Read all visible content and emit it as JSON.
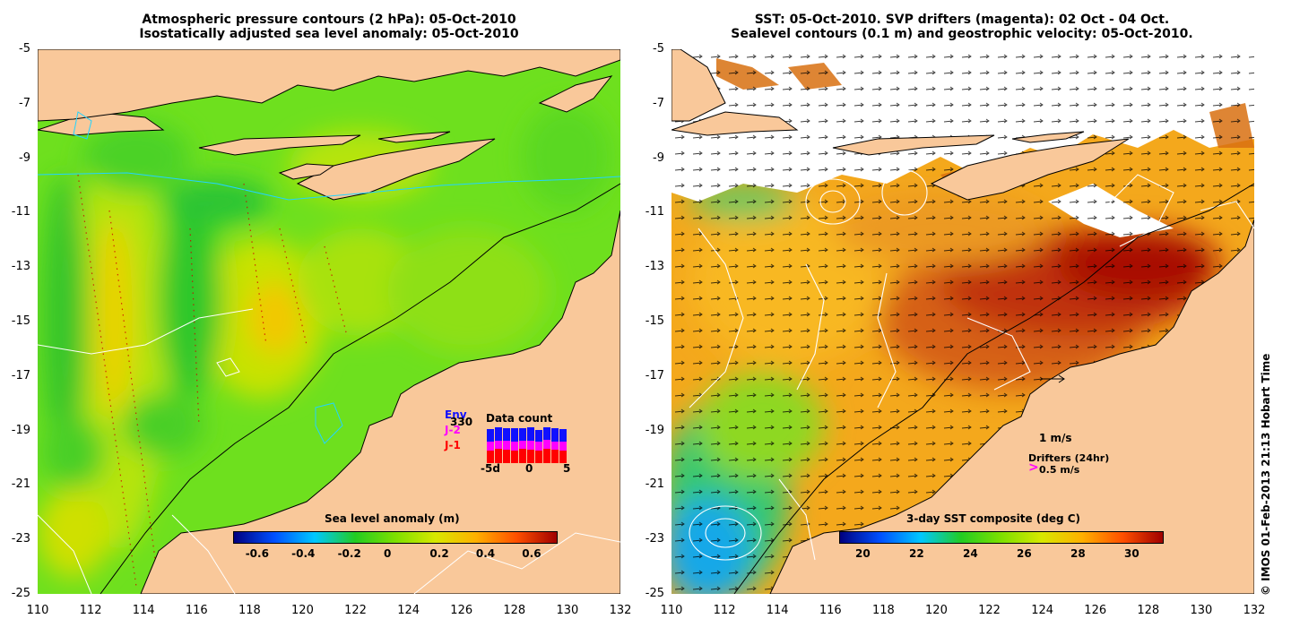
{
  "left": {
    "title_line1": "Atmospheric pressure contours (2 hPa): 05-Oct-2010",
    "title_line2": "Isostatically adjusted sea level anomaly: 05-Oct-2010",
    "colorbar_title": "Sea level anomaly (m)",
    "colorbar_ticks": [
      "-0.6",
      "-0.4",
      "-0.2",
      "0",
      "0.2",
      "0.4",
      "0.6"
    ],
    "colorbar_colors": [
      "#00007f",
      "#0050ff",
      "#00c8ff",
      "#22cc22",
      "#7ee000",
      "#d8e800",
      "#ffb000",
      "#ff5000",
      "#a00000"
    ],
    "inset": {
      "title": "Data count",
      "legend_env": "Env",
      "legend_env_count": "330",
      "legend_j2": "J-2",
      "legend_j1": "J-1",
      "xticks": [
        "-5d",
        "0",
        "5"
      ],
      "colors": {
        "env": "#1010ff",
        "j2": "#ff00ff",
        "j1": "#ff0000"
      }
    }
  },
  "right": {
    "title_line1": "SST: 05-Oct-2010. SVP drifters (magenta): 02 Oct - 04 Oct.",
    "title_line2": "Sealevel contours (0.1 m) and geostrophic velocity: 05-Oct-2010.",
    "colorbar_title": "3-day SST composite (deg C)",
    "colorbar_ticks": [
      "20",
      "22",
      "24",
      "26",
      "28",
      "30"
    ],
    "colorbar_colors": [
      "#00007f",
      "#0050ff",
      "#00c8ff",
      "#22cc22",
      "#7ee000",
      "#d8e800",
      "#ffb000",
      "#ff5000",
      "#a00000"
    ],
    "scale_label": "1 m/s",
    "drifters_label": "Drifters (24hr)",
    "drifter_speed_label": "0.5 m/s",
    "drifter_color": "#ff00ff"
  },
  "axes": {
    "lat_ticks": [
      "-5",
      "-7",
      "-9",
      "-11",
      "-13",
      "-15",
      "-17",
      "-19",
      "-21",
      "-23",
      "-25"
    ],
    "lon_ticks": [
      "110",
      "112",
      "114",
      "116",
      "118",
      "120",
      "122",
      "124",
      "126",
      "128",
      "130",
      "132"
    ]
  },
  "land_color": "#f9c89a",
  "credit": "© IMOS 01-Feb-2013 21:13 Hobart Time"
}
